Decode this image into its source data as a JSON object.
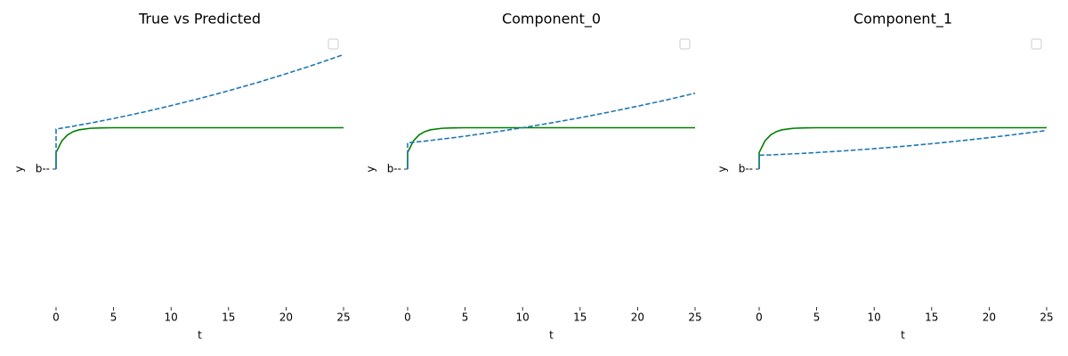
{
  "chart_data": [
    {
      "type": "line",
      "title": "True vs Predicted",
      "x_label": "t",
      "y_label": "y",
      "x": [
        0,
        0,
        0.5,
        1,
        1.5,
        2,
        3,
        4,
        5,
        7.5,
        10,
        12.5,
        15,
        17.5,
        20,
        22.5,
        25
      ],
      "xlim": [
        0,
        25
      ],
      "xticks": [
        0,
        5,
        10,
        15,
        20,
        25
      ],
      "ylim": [
        -1,
        1
      ],
      "yticks": [
        {
          "value": 0,
          "label": "b--"
        }
      ],
      "series": [
        {
          "color": "#008000",
          "linestyle": "solid",
          "values": [
            0,
            0.12,
            0.204,
            0.248,
            0.272,
            0.285,
            0.296,
            0.299,
            0.3,
            0.3,
            0.3,
            0.3,
            0.3,
            0.3,
            0.3,
            0.3,
            0.3
          ]
        },
        {
          "color": "#1f77b4",
          "linestyle": "dashed",
          "values": [
            0,
            0.29,
            0.297,
            0.304,
            0.311,
            0.319,
            0.334,
            0.35,
            0.367,
            0.411,
            0.46,
            0.512,
            0.568,
            0.627,
            0.691,
            0.758,
            0.83
          ]
        }
      ],
      "legend": "upper right"
    },
    {
      "type": "line",
      "title": "Component_0",
      "x_label": "t",
      "y_label": "y",
      "x": [
        0,
        0,
        0.5,
        1,
        1.5,
        2,
        3,
        4,
        5,
        7.5,
        10,
        12.5,
        15,
        17.5,
        20,
        22.5,
        25
      ],
      "xlim": [
        0,
        25
      ],
      "xticks": [
        0,
        5,
        10,
        15,
        20,
        25
      ],
      "ylim": [
        -1,
        1
      ],
      "yticks": [
        {
          "value": 0,
          "label": "b--"
        }
      ],
      "series": [
        {
          "color": "#008000",
          "linestyle": "solid",
          "values": [
            0,
            0.12,
            0.204,
            0.248,
            0.272,
            0.285,
            0.296,
            0.299,
            0.3,
            0.3,
            0.3,
            0.3,
            0.3,
            0.3,
            0.3,
            0.3,
            0.3
          ]
        },
        {
          "color": "#1f77b4",
          "linestyle": "dashed",
          "values": [
            0,
            0.19,
            0.194,
            0.199,
            0.203,
            0.208,
            0.218,
            0.228,
            0.239,
            0.268,
            0.3,
            0.335,
            0.372,
            0.413,
            0.456,
            0.501,
            0.55
          ]
        }
      ],
      "legend": "upper right"
    },
    {
      "type": "line",
      "title": "Component_1",
      "x_label": "t",
      "y_label": "y",
      "x": [
        0,
        0,
        0.5,
        1,
        1.5,
        2,
        3,
        4,
        5,
        7.5,
        10,
        12.5,
        15,
        17.5,
        20,
        22.5,
        25
      ],
      "xlim": [
        0,
        25
      ],
      "xticks": [
        0,
        5,
        10,
        15,
        20,
        25
      ],
      "ylim": [
        -1,
        1
      ],
      "yticks": [
        {
          "value": 0,
          "label": "b--"
        }
      ],
      "series": [
        {
          "color": "#008000",
          "linestyle": "solid",
          "values": [
            0,
            0.12,
            0.204,
            0.248,
            0.272,
            0.285,
            0.296,
            0.299,
            0.3,
            0.3,
            0.3,
            0.3,
            0.3,
            0.3,
            0.3,
            0.3,
            0.3
          ]
        },
        {
          "color": "#1f77b4",
          "linestyle": "dashed",
          "values": [
            0,
            0.1,
            0.102,
            0.103,
            0.105,
            0.107,
            0.111,
            0.115,
            0.12,
            0.133,
            0.148,
            0.165,
            0.184,
            0.205,
            0.228,
            0.253,
            0.28
          ]
        }
      ],
      "legend": "upper right"
    }
  ]
}
